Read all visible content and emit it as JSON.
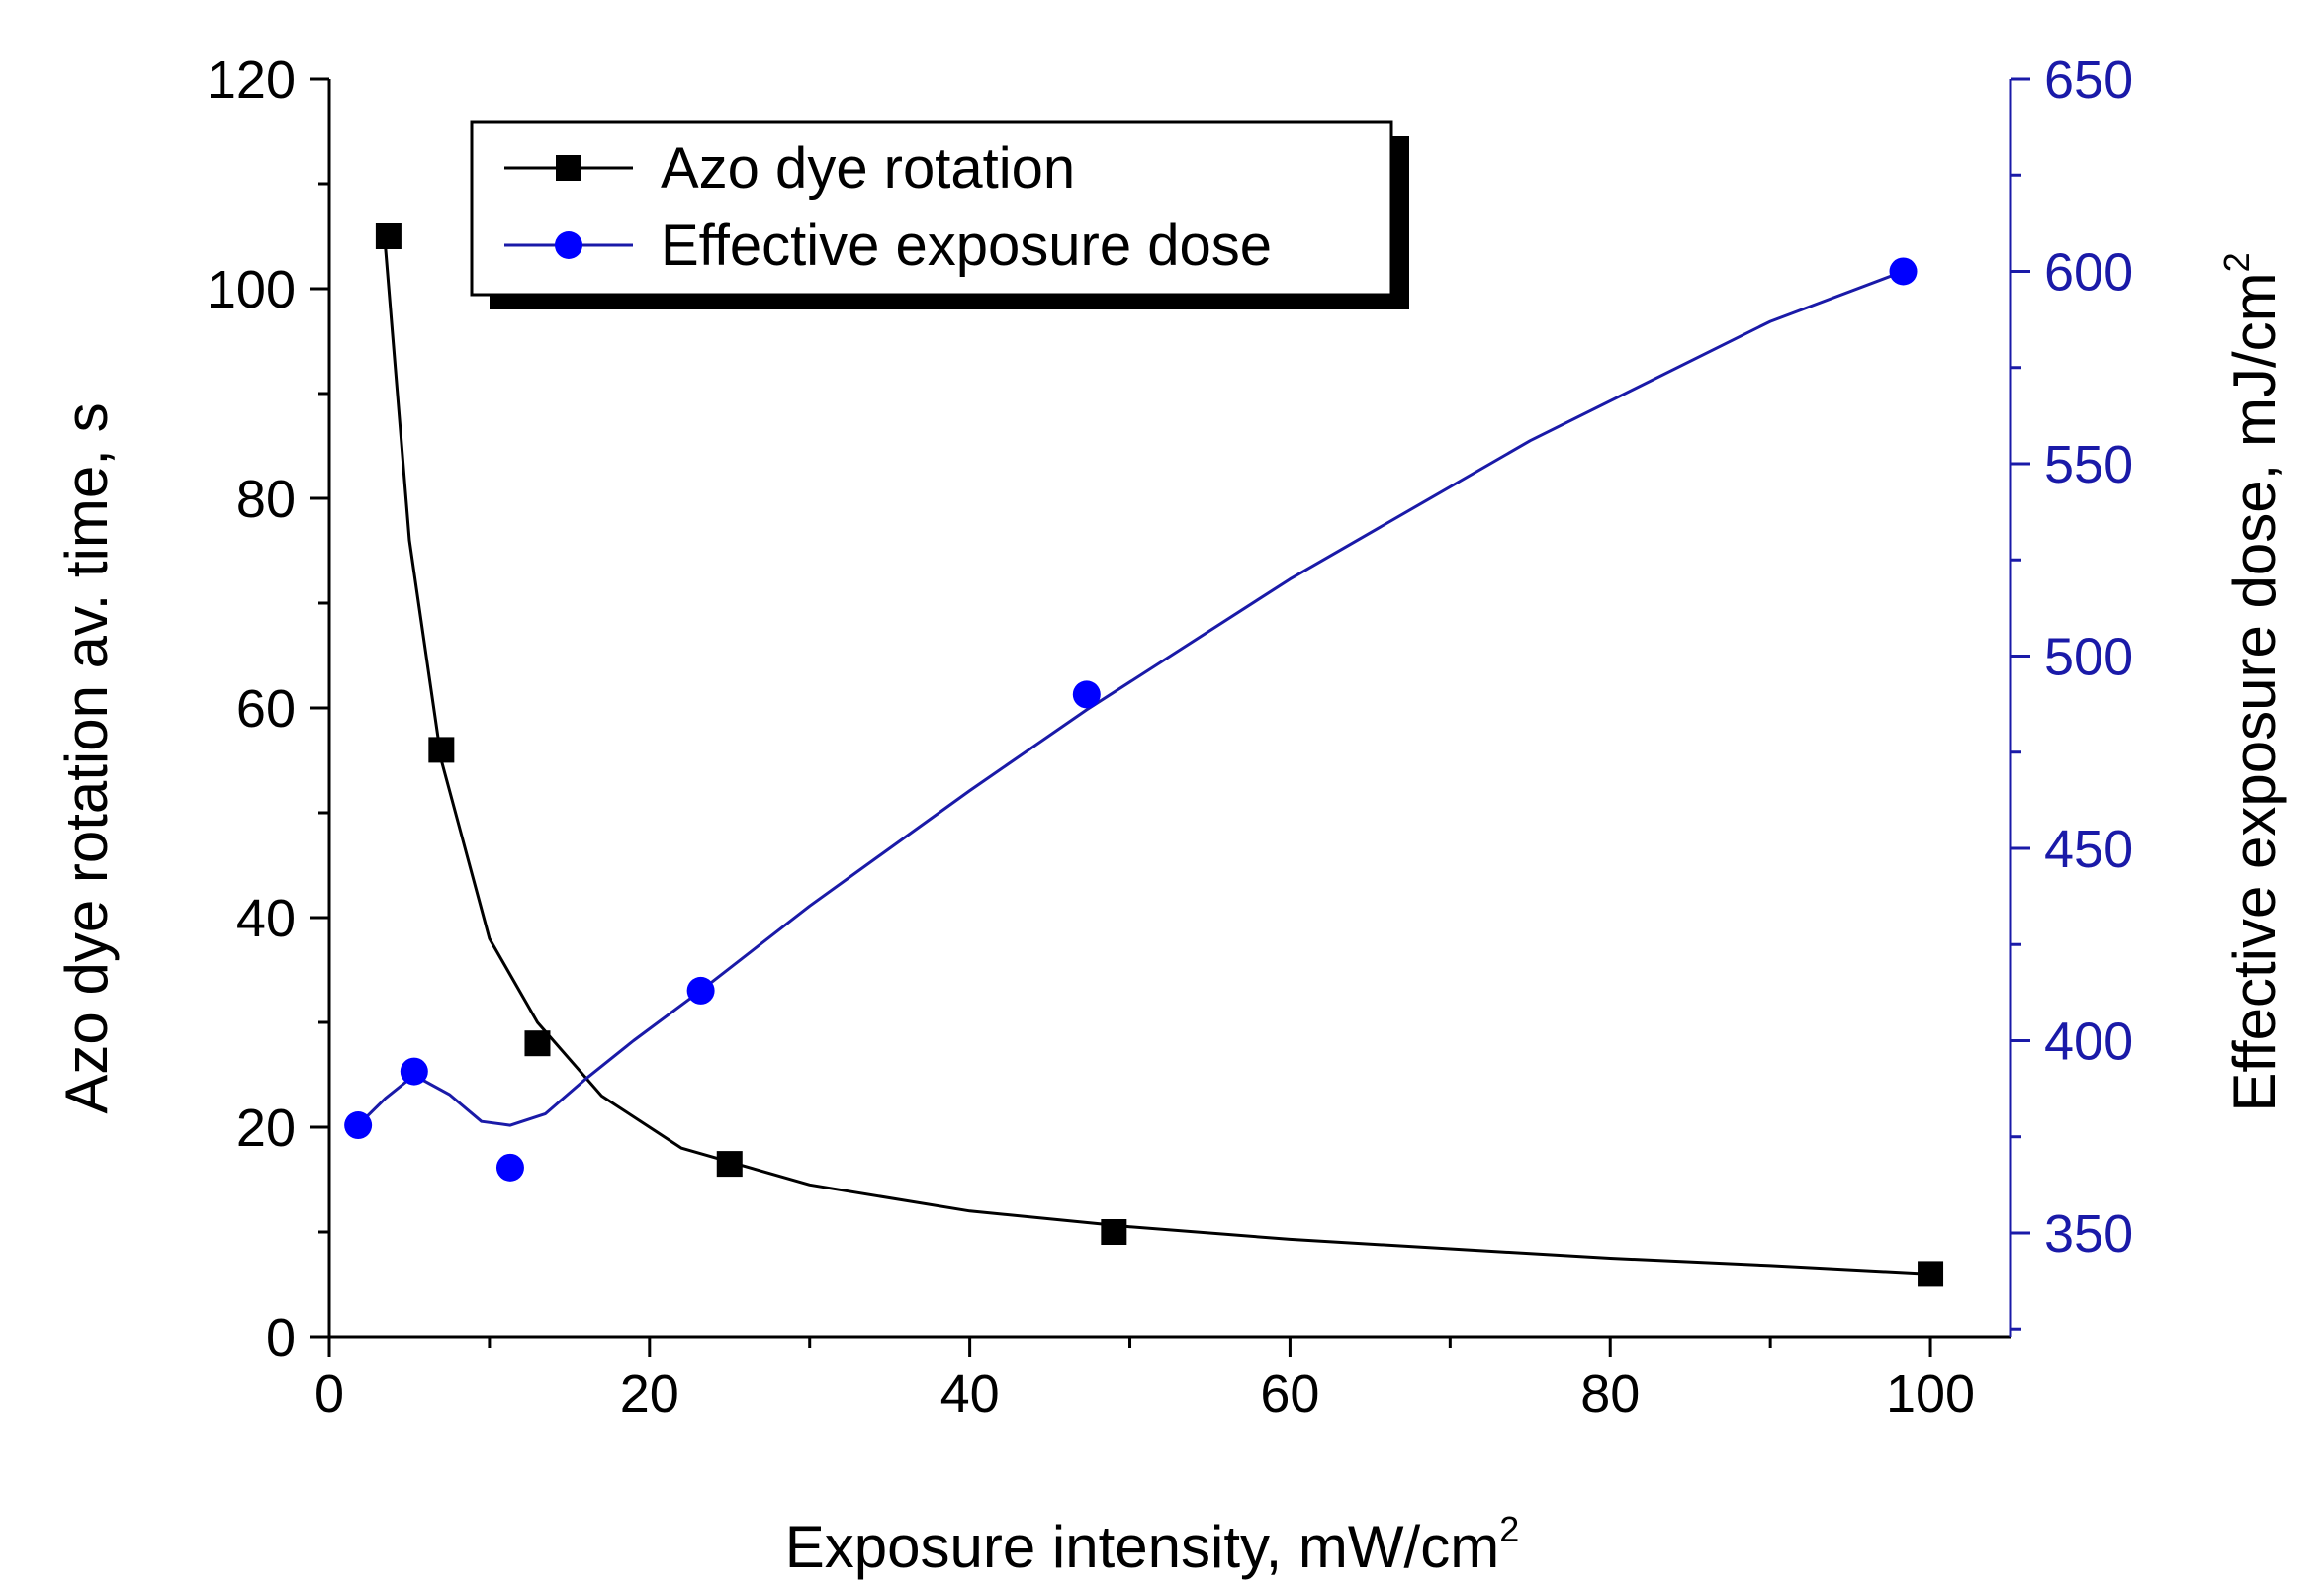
{
  "chart_data": {
    "type": "scatter",
    "xlabel": "Exposure intensity, mW/cm",
    "xlabel_sup": "2",
    "ylabel": "Azo dye rotation av. time, s",
    "y2label": "Effective exposure dose, mJ/cm",
    "y2label_sup": "2",
    "xlim": [
      0,
      105
    ],
    "ylim": [
      0,
      120
    ],
    "y2lim": [
      323,
      650
    ],
    "xticks": [
      0,
      20,
      40,
      60,
      80,
      100
    ],
    "yticks": [
      0,
      20,
      40,
      60,
      80,
      100,
      120
    ],
    "y2ticks": [
      350,
      400,
      450,
      500,
      550,
      600,
      650
    ],
    "grid": false,
    "legend_position": "top-left",
    "series": [
      {
        "name": "Azo dye rotation",
        "axis": "left",
        "marker": "square",
        "color": "#000000",
        "x": [
          3.7,
          7,
          13,
          25,
          49,
          100
        ],
        "y": [
          105,
          56,
          28,
          16.5,
          10,
          6
        ],
        "fit_x": [
          3.5,
          5,
          7,
          10,
          13,
          17,
          22,
          30,
          40,
          50,
          60,
          70,
          80,
          90,
          100
        ],
        "fit_y": [
          104,
          76,
          55,
          38,
          30,
          23,
          18,
          14.5,
          12,
          10.5,
          9.3,
          8.4,
          7.5,
          6.8,
          6
        ]
      },
      {
        "name": "Effective exposure dose",
        "axis": "right",
        "marker": "circle",
        "color": "#0000ff",
        "line_color": "#1a1aa8",
        "x": [
          1.8,
          5.3,
          11.3,
          23.2,
          47.3,
          98.3
        ],
        "y": [
          378,
          392,
          367,
          413,
          490,
          600
        ],
        "fit_x": [
          1.8,
          3.5,
          5.3,
          7.5,
          9.5,
          11.3,
          13.5,
          16,
          19,
          23.2,
          30,
          40,
          47.3,
          60,
          75,
          90,
          98.3
        ],
        "fit_y": [
          378,
          385,
          391,
          386,
          379,
          378,
          381,
          390,
          400,
          413,
          435,
          465,
          486,
          520,
          556,
          587,
          600
        ]
      }
    ]
  }
}
